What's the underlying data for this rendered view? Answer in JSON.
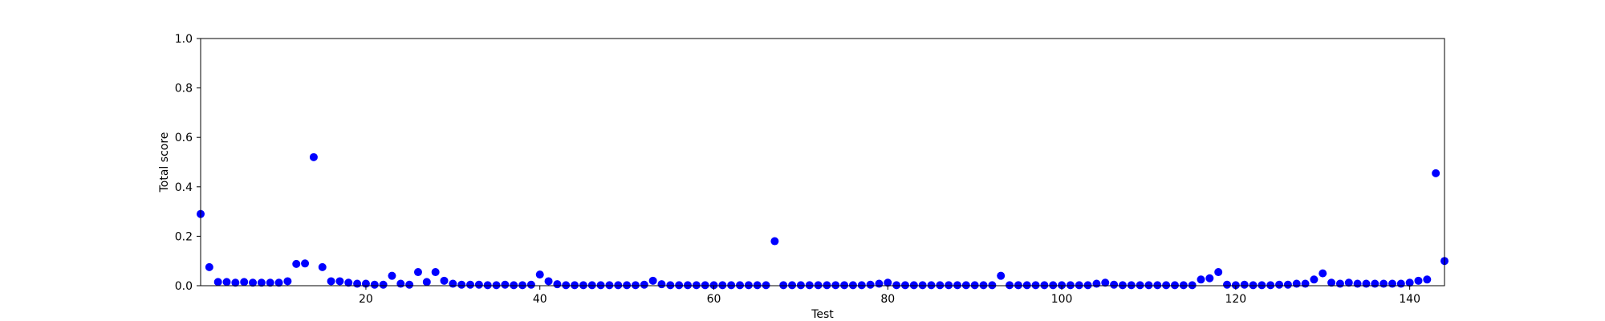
{
  "chart_data": {
    "type": "scatter",
    "title": "",
    "xlabel": "Test",
    "ylabel": "Total score",
    "xlim": [
      1,
      144
    ],
    "ylim": [
      0.0,
      1.0
    ],
    "x_ticks": [
      20,
      40,
      60,
      80,
      100,
      120,
      140
    ],
    "x_tick_labels": [
      "20",
      "40",
      "60",
      "80",
      "100",
      "120",
      "140"
    ],
    "y_ticks": [
      0.0,
      0.2,
      0.4,
      0.6,
      0.8,
      1.0
    ],
    "y_tick_labels": [
      "0.0",
      "0.2",
      "0.4",
      "0.6",
      "0.8",
      "1.0"
    ],
    "grid": false,
    "legend": "none",
    "marker_color": "#0000ff",
    "series": [
      {
        "x": [
          1,
          2,
          3,
          4,
          5,
          6,
          7,
          8,
          9,
          10,
          11,
          12,
          13,
          14,
          15,
          16,
          17,
          18,
          19,
          20,
          21,
          22,
          23,
          24,
          25,
          26,
          27,
          28,
          29,
          30,
          31,
          32,
          33,
          34,
          35,
          36,
          37,
          38,
          39,
          40,
          41,
          42,
          43,
          44,
          45,
          46,
          47,
          48,
          49,
          50,
          51,
          52,
          53,
          54,
          55,
          56,
          57,
          58,
          59,
          60,
          61,
          62,
          63,
          64,
          65,
          66,
          67,
          68,
          69,
          70,
          71,
          72,
          73,
          74,
          75,
          76,
          77,
          78,
          79,
          80,
          81,
          82,
          83,
          84,
          85,
          86,
          87,
          88,
          89,
          90,
          91,
          92,
          93,
          94,
          95,
          96,
          97,
          98,
          99,
          100,
          101,
          102,
          103,
          104,
          105,
          106,
          107,
          108,
          109,
          110,
          111,
          112,
          113,
          114,
          115,
          116,
          117,
          118,
          119,
          120,
          121,
          122,
          123,
          124,
          125,
          126,
          127,
          128,
          129,
          130,
          131,
          132,
          133,
          134,
          135,
          136,
          137,
          138,
          139,
          140,
          141,
          142,
          143,
          144
        ],
        "y": [
          0.29,
          0.075,
          0.015,
          0.015,
          0.012,
          0.015,
          0.012,
          0.012,
          0.012,
          0.012,
          0.018,
          0.088,
          0.09,
          0.52,
          0.075,
          0.018,
          0.018,
          0.012,
          0.008,
          0.008,
          0.004,
          0.004,
          0.04,
          0.008,
          0.004,
          0.055,
          0.015,
          0.055,
          0.02,
          0.008,
          0.004,
          0.004,
          0.004,
          0.002,
          0.002,
          0.004,
          0.002,
          0.002,
          0.004,
          0.045,
          0.018,
          0.006,
          0.002,
          0.002,
          0.002,
          0.002,
          0.002,
          0.002,
          0.002,
          0.002,
          0.002,
          0.004,
          0.02,
          0.006,
          0.002,
          0.002,
          0.002,
          0.002,
          0.002,
          0.002,
          0.002,
          0.002,
          0.002,
          0.002,
          0.002,
          0.002,
          0.18,
          0.002,
          0.002,
          0.002,
          0.002,
          0.002,
          0.002,
          0.002,
          0.002,
          0.002,
          0.002,
          0.004,
          0.008,
          0.012,
          0.002,
          0.002,
          0.002,
          0.002,
          0.002,
          0.002,
          0.002,
          0.002,
          0.002,
          0.002,
          0.002,
          0.002,
          0.04,
          0.002,
          0.002,
          0.002,
          0.002,
          0.002,
          0.002,
          0.002,
          0.002,
          0.002,
          0.002,
          0.008,
          0.012,
          0.004,
          0.002,
          0.002,
          0.002,
          0.002,
          0.002,
          0.002,
          0.002,
          0.002,
          0.002,
          0.025,
          0.03,
          0.055,
          0.004,
          0.002,
          0.004,
          0.002,
          0.002,
          0.002,
          0.004,
          0.004,
          0.008,
          0.008,
          0.025,
          0.05,
          0.012,
          0.008,
          0.012,
          0.008,
          0.008,
          0.008,
          0.008,
          0.008,
          0.008,
          0.012,
          0.02,
          0.025,
          0.455,
          0.1
        ]
      }
    ]
  }
}
